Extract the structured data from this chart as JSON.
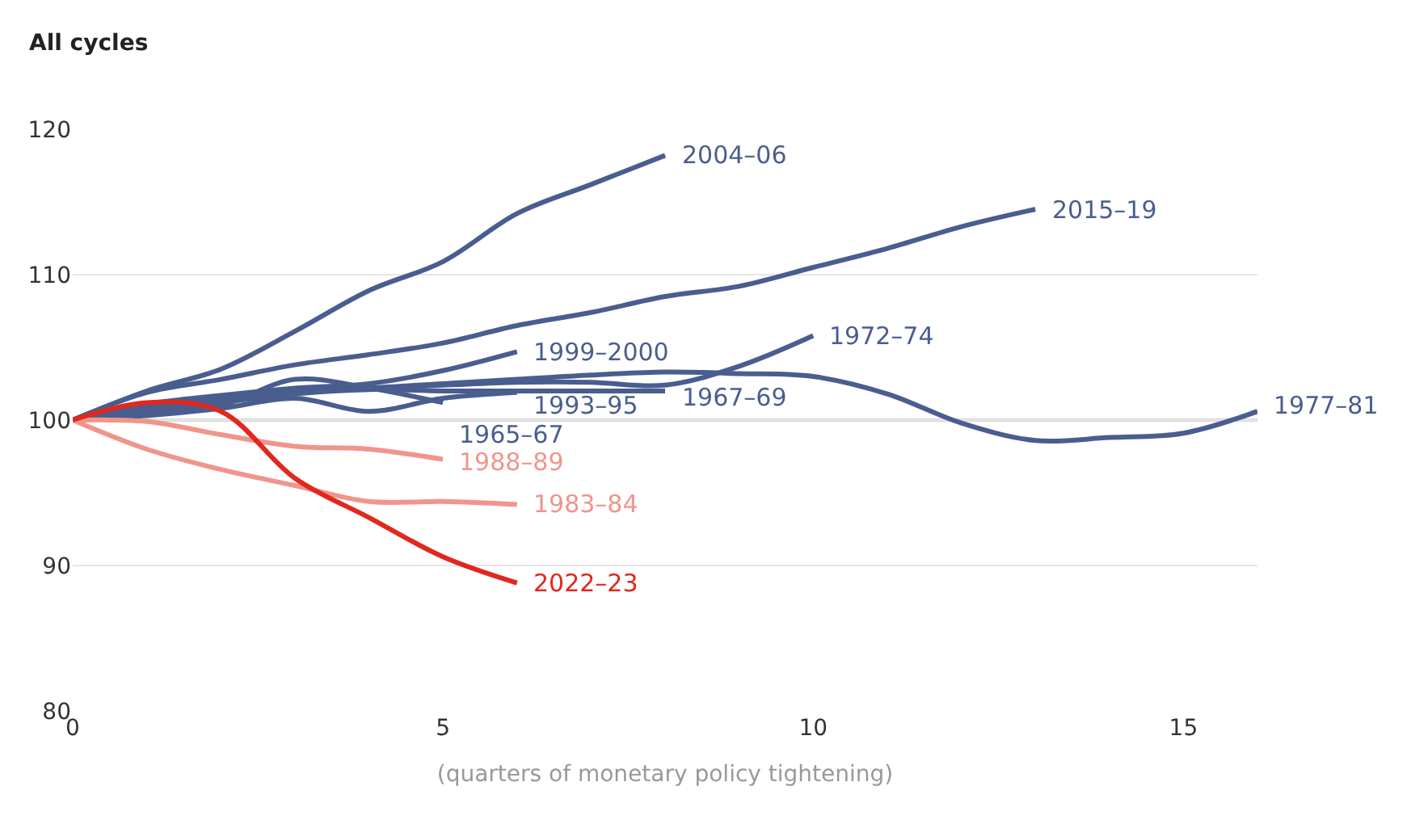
{
  "chart_data": {
    "type": "line",
    "xlabel": "(quarters of monetary policy tightening)",
    "annotations": [
      "All cycles"
    ],
    "xlim": [
      0,
      16
    ],
    "xticks": [
      0,
      5,
      10,
      15
    ],
    "ylim": [
      80,
      120
    ],
    "yticks": [
      80,
      90,
      100,
      110,
      120
    ],
    "grid": "y",
    "legend": false,
    "ref_lines": [
      {
        "axis": "y",
        "value": 100,
        "color": "#555555"
      }
    ],
    "series": [
      {
        "name": "2004–06",
        "color": "#4a5d8f",
        "x": [
          0,
          1,
          2,
          3,
          4,
          5,
          6,
          7,
          8
        ],
        "values": [
          100,
          102.0,
          103.5,
          106.1,
          108.9,
          110.9,
          114.2,
          116.2,
          118.2
        ]
      },
      {
        "name": "2015–19",
        "color": "#4a5d8f",
        "x": [
          0,
          1,
          2,
          3,
          4,
          5,
          6,
          7,
          8,
          9,
          10,
          11,
          12,
          13
        ],
        "values": [
          100,
          101.9,
          102.8,
          103.8,
          104.5,
          105.3,
          106.5,
          107.4,
          108.5,
          109.2,
          110.5,
          111.8,
          113.3,
          114.5
        ]
      },
      {
        "name": "1999–2000",
        "color": "#4a5d8f",
        "x": [
          0,
          1,
          2,
          3,
          4,
          5,
          6
        ],
        "values": [
          100,
          101.1,
          101.7,
          102.2,
          102.5,
          103.4,
          104.7
        ]
      },
      {
        "name": "1972–74",
        "color": "#4a5d8f",
        "x": [
          0,
          1,
          2,
          3,
          4,
          5,
          6,
          7,
          8,
          9,
          10
        ],
        "values": [
          100,
          101.0,
          101.5,
          102.0,
          102.2,
          102.4,
          102.6,
          102.6,
          102.4,
          103.7,
          105.8
        ]
      },
      {
        "name": "1977–81",
        "color": "#4a5d8f",
        "x": [
          0,
          1,
          2,
          3,
          4,
          5,
          6,
          7,
          8,
          9,
          10,
          11,
          12,
          13,
          14,
          15,
          16
        ],
        "values": [
          100,
          100.8,
          101.3,
          102.0,
          102.2,
          102.5,
          102.8,
          103.1,
          103.3,
          103.2,
          103.0,
          101.8,
          99.8,
          98.6,
          98.8,
          99.1,
          100.6
        ]
      },
      {
        "name": "1967–69",
        "color": "#4a5d8f",
        "x": [
          0,
          1,
          2,
          3,
          4,
          5,
          6,
          7,
          8
        ],
        "values": [
          100,
          100.6,
          101.2,
          101.8,
          102.1,
          102.0,
          102.0,
          102.0,
          102.0
        ]
      },
      {
        "name": "1965–67",
        "color": "#4a5d8f",
        "x": [
          0,
          1,
          2,
          3,
          4,
          5
        ],
        "values": [
          100,
          100.4,
          101.0,
          102.8,
          102.2,
          101.2
        ]
      },
      {
        "name": "1993–95",
        "color": "#4a5d8f",
        "x": [
          0,
          1,
          2,
          3,
          4,
          5,
          6
        ],
        "values": [
          100,
          100.3,
          100.8,
          101.5,
          100.6,
          101.5,
          101.9
        ]
      },
      {
        "name": "1988–89",
        "color": "#f0958b",
        "x": [
          0,
          1,
          2,
          3,
          4,
          5
        ],
        "values": [
          100,
          99.9,
          99.0,
          98.2,
          98.0,
          97.3
        ]
      },
      {
        "name": "1983–84",
        "color": "#f0958b",
        "x": [
          0,
          1,
          2,
          3,
          4,
          5,
          6
        ],
        "values": [
          100,
          98.0,
          96.6,
          95.5,
          94.4,
          94.4,
          94.2
        ]
      },
      {
        "name": "2022–23",
        "color": "#e0281f",
        "x": [
          0,
          1,
          2,
          3,
          4,
          5,
          6
        ],
        "values": [
          100,
          101.2,
          100.6,
          96.0,
          93.3,
          90.6,
          88.8
        ]
      }
    ]
  }
}
